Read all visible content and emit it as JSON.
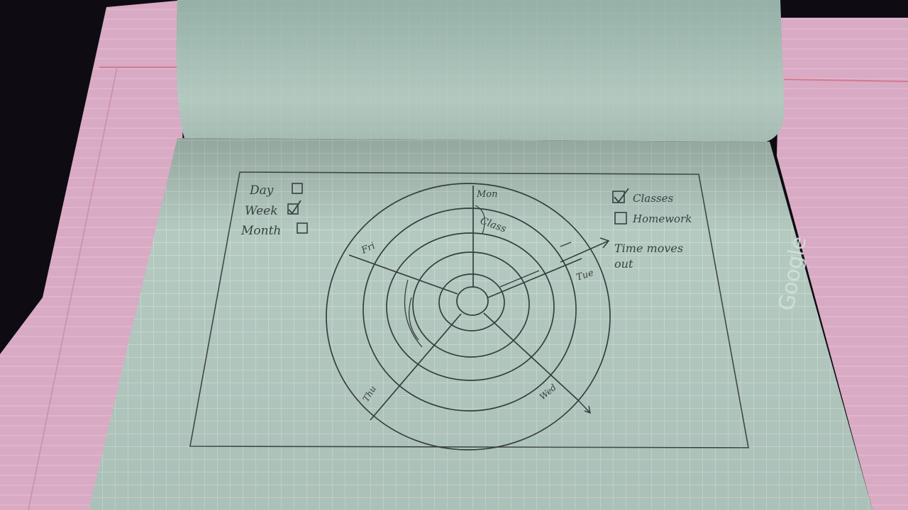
{
  "sketch": {
    "view_options": [
      {
        "label": "Day",
        "checked": false
      },
      {
        "label": "Week",
        "checked": true
      },
      {
        "label": "Month",
        "checked": false
      }
    ],
    "filter_options": [
      {
        "label": "Classes",
        "checked": true
      },
      {
        "label": "Homework",
        "checked": false
      }
    ],
    "days": [
      "Mon",
      "Tue",
      "Wed",
      "Thu",
      "Fri"
    ],
    "ring_label": "Class",
    "note_line1": "Time moves",
    "note_line2": "out",
    "brand_text": "Google"
  },
  "colors": {
    "grid_paper": "#b4cac1",
    "pink_paper": "#d9a9c2",
    "pencil": "#37413f"
  }
}
